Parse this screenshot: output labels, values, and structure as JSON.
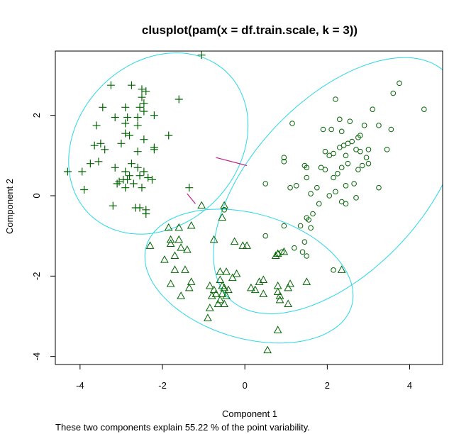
{
  "chart_data": {
    "type": "scatter",
    "title": "clusplot(pam(x = df.train.scale, k = 3))",
    "xlabel": "Component 1",
    "ylabel": "Component 2",
    "note": "These two components explain 55.22 % of the point variability.",
    "xlim": [
      -4.6,
      4.8
    ],
    "ylim": [
      -4.2,
      3.6
    ],
    "xticks": [
      -4,
      -2,
      0,
      2,
      4
    ],
    "yticks": [
      -4,
      -2,
      0,
      2
    ],
    "grid": false,
    "colors": {
      "points": "#006400",
      "ellipse": "#28d7e6",
      "connector": "#c0208a",
      "axes": "#000000"
    },
    "ellipses": [
      {
        "cluster": 1,
        "cx": -2.1,
        "cy": 1.3,
        "a": 2.43,
        "b": 1.98,
        "angle_deg": 50
      },
      {
        "cluster": 2,
        "cx": 2.25,
        "cy": 0.25,
        "a": 3.85,
        "b": 2.1,
        "angle_deg": 48
      },
      {
        "cluster": 3,
        "cx": 0.1,
        "cy": -2.0,
        "a": 2.6,
        "b": 1.55,
        "angle_deg": -17
      }
    ],
    "connectors": [
      {
        "from": [
          -0.7,
          0.95
        ],
        "to": [
          0.05,
          0.75
        ]
      },
      {
        "from": [
          -1.4,
          0.05
        ],
        "to": [
          -1.2,
          -0.2
        ]
      }
    ],
    "series": [
      {
        "cluster": 1,
        "marker": "plus",
        "points": [
          [
            -1.05,
            3.5
          ],
          [
            -3.25,
            2.75
          ],
          [
            -2.75,
            2.75
          ],
          [
            -2.5,
            2.65
          ],
          [
            -2.5,
            2.45
          ],
          [
            -2.4,
            2.6
          ],
          [
            -2.45,
            2.3
          ],
          [
            -1.6,
            2.4
          ],
          [
            -3.45,
            2.2
          ],
          [
            -2.9,
            2.2
          ],
          [
            -2.55,
            2.2
          ],
          [
            -2.45,
            2.1
          ],
          [
            -3.15,
            1.95
          ],
          [
            -2.85,
            1.95
          ],
          [
            -2.6,
            1.95
          ],
          [
            -2.2,
            2.0
          ],
          [
            -3.6,
            1.75
          ],
          [
            -2.9,
            1.8
          ],
          [
            -2.6,
            1.75
          ],
          [
            -2.9,
            1.55
          ],
          [
            -2.8,
            1.5
          ],
          [
            -1.85,
            1.5
          ],
          [
            -3.0,
            1.3
          ],
          [
            -3.5,
            1.3
          ],
          [
            -3.65,
            1.25
          ],
          [
            -2.45,
            1.4
          ],
          [
            -2.2,
            1.15
          ],
          [
            -2.2,
            1.2
          ],
          [
            -2.6,
            1.1
          ],
          [
            -3.4,
            1.15
          ],
          [
            -3.75,
            0.8
          ],
          [
            -3.55,
            0.85
          ],
          [
            -2.75,
            0.8
          ],
          [
            -3.15,
            0.7
          ],
          [
            -2.9,
            0.6
          ],
          [
            -2.6,
            0.7
          ],
          [
            -2.45,
            0.6
          ],
          [
            -4.3,
            0.6
          ],
          [
            -3.95,
            0.6
          ],
          [
            -2.8,
            0.5
          ],
          [
            -2.55,
            0.5
          ],
          [
            -2.35,
            0.45
          ],
          [
            -2.25,
            0.4
          ],
          [
            -2.85,
            0.4
          ],
          [
            -2.95,
            0.4
          ],
          [
            -3.05,
            0.35
          ],
          [
            -3.1,
            0.3
          ],
          [
            -2.7,
            0.3
          ],
          [
            -2.5,
            0.2
          ],
          [
            -2.9,
            0.2
          ],
          [
            -3.9,
            0.15
          ],
          [
            -1.35,
            0.2
          ],
          [
            -3.2,
            -0.25
          ],
          [
            -2.55,
            -0.3
          ],
          [
            -2.65,
            -0.3
          ],
          [
            -2.4,
            -0.35
          ],
          [
            -2.4,
            -0.45
          ]
        ]
      },
      {
        "cluster": 2,
        "marker": "circle",
        "points": [
          [
            3.75,
            2.8
          ],
          [
            3.6,
            2.55
          ],
          [
            4.35,
            2.15
          ],
          [
            2.2,
            2.4
          ],
          [
            3.1,
            2.15
          ],
          [
            2.3,
            1.9
          ],
          [
            2.55,
            1.85
          ],
          [
            1.15,
            1.8
          ],
          [
            2.9,
            1.75
          ],
          [
            3.25,
            1.75
          ],
          [
            1.9,
            1.65
          ],
          [
            2.1,
            1.65
          ],
          [
            3.55,
            1.65
          ],
          [
            2.35,
            1.6
          ],
          [
            2.75,
            1.45
          ],
          [
            2.8,
            1.5
          ],
          [
            2.6,
            1.35
          ],
          [
            2.5,
            1.3
          ],
          [
            2.4,
            1.25
          ],
          [
            2.3,
            1.2
          ],
          [
            2.7,
            1.15
          ],
          [
            3.45,
            1.15
          ],
          [
            3.0,
            1.15
          ],
          [
            2.8,
            1.1
          ],
          [
            1.95,
            1.1
          ],
          [
            2.15,
            1.05
          ],
          [
            2.05,
            1.0
          ],
          [
            2.45,
            1.0
          ],
          [
            2.95,
            0.95
          ],
          [
            0.95,
            0.95
          ],
          [
            0.95,
            0.85
          ],
          [
            1.5,
            0.7
          ],
          [
            1.45,
            0.75
          ],
          [
            2.5,
            0.8
          ],
          [
            2.85,
            0.75
          ],
          [
            3.0,
            0.8
          ],
          [
            2.35,
            0.7
          ],
          [
            1.85,
            0.7
          ],
          [
            1.95,
            0.65
          ],
          [
            2.75,
            0.65
          ],
          [
            2.25,
            0.55
          ],
          [
            1.5,
            0.45
          ],
          [
            2.15,
            0.45
          ],
          [
            0.5,
            0.3
          ],
          [
            2.65,
            0.3
          ],
          [
            2.45,
            0.25
          ],
          [
            1.75,
            0.2
          ],
          [
            1.25,
            0.25
          ],
          [
            1.1,
            0.2
          ],
          [
            3.25,
            0.2
          ],
          [
            2.2,
            0.1
          ],
          [
            1.6,
            0.05
          ],
          [
            2.05,
            0.0
          ],
          [
            2.7,
            -0.05
          ],
          [
            1.8,
            -0.2
          ],
          [
            2.35,
            -0.15
          ],
          [
            2.45,
            -0.2
          ],
          [
            -0.5,
            -0.35
          ],
          [
            1.5,
            -0.55
          ],
          [
            1.65,
            -0.45
          ],
          [
            1.55,
            -0.6
          ],
          [
            1.35,
            -0.75
          ],
          [
            0.95,
            -0.75
          ],
          [
            1.6,
            -0.8
          ],
          [
            0.5,
            -1.0
          ],
          [
            1.45,
            -1.15
          ],
          [
            1.2,
            -1.3
          ],
          [
            1.4,
            -1.4
          ],
          [
            0.9,
            -1.4
          ],
          [
            0.8,
            -1.45
          ],
          [
            1.5,
            -1.5
          ],
          [
            2.15,
            -1.85
          ]
        ]
      },
      {
        "cluster": 3,
        "marker": "triangle",
        "points": [
          [
            -1.05,
            -0.25
          ],
          [
            -0.55,
            -0.55
          ],
          [
            -0.5,
            -0.25
          ],
          [
            -1.3,
            -0.75
          ],
          [
            -1.85,
            -0.8
          ],
          [
            -1.6,
            -0.8
          ],
          [
            -2.3,
            -1.25
          ],
          [
            -1.8,
            -1.1
          ],
          [
            -1.8,
            -1.2
          ],
          [
            -1.6,
            -1.1
          ],
          [
            -1.55,
            -1.3
          ],
          [
            -1.4,
            -1.35
          ],
          [
            -1.7,
            -1.5
          ],
          [
            -0.75,
            -1.1
          ],
          [
            -0.25,
            -1.15
          ],
          [
            -0.05,
            -1.25
          ],
          [
            0.05,
            -1.25
          ],
          [
            0.8,
            -1.45
          ],
          [
            0.75,
            -1.5
          ],
          [
            0.95,
            -1.4
          ],
          [
            -1.95,
            -1.6
          ],
          [
            -1.7,
            -1.85
          ],
          [
            -1.45,
            -1.85
          ],
          [
            -1.8,
            -2.2
          ],
          [
            -1.3,
            -2.15
          ],
          [
            -1.35,
            -2.3
          ],
          [
            -1.55,
            -2.5
          ],
          [
            -0.6,
            -1.9
          ],
          [
            -0.45,
            -1.9
          ],
          [
            -0.2,
            -1.95
          ],
          [
            -0.3,
            -2.05
          ],
          [
            -0.6,
            -2.1
          ],
          [
            0.35,
            -2.15
          ],
          [
            0.45,
            -2.1
          ],
          [
            0.8,
            -2.25
          ],
          [
            0.8,
            -2.4
          ],
          [
            1.05,
            -2.3
          ],
          [
            1.1,
            -2.2
          ],
          [
            1.5,
            -2.15
          ],
          [
            2.35,
            -1.85
          ],
          [
            -0.55,
            -2.25
          ],
          [
            -0.5,
            -2.3
          ],
          [
            -0.55,
            -2.45
          ],
          [
            -0.4,
            -2.35
          ],
          [
            -0.45,
            -2.5
          ],
          [
            -0.75,
            -2.35
          ],
          [
            -0.7,
            -2.45
          ],
          [
            -0.85,
            -2.25
          ],
          [
            -0.8,
            -2.5
          ],
          [
            -0.6,
            -2.6
          ],
          [
            -0.5,
            -2.7
          ],
          [
            -0.65,
            -2.7
          ],
          [
            -0.85,
            -2.8
          ],
          [
            0.15,
            -2.3
          ],
          [
            0.25,
            -2.35
          ],
          [
            0.45,
            -2.45
          ],
          [
            0.85,
            -2.5
          ],
          [
            0.85,
            -2.6
          ],
          [
            1.05,
            -2.7
          ],
          [
            -0.9,
            -3.05
          ],
          [
            0.8,
            -3.35
          ],
          [
            0.55,
            -3.85
          ]
        ]
      }
    ]
  }
}
